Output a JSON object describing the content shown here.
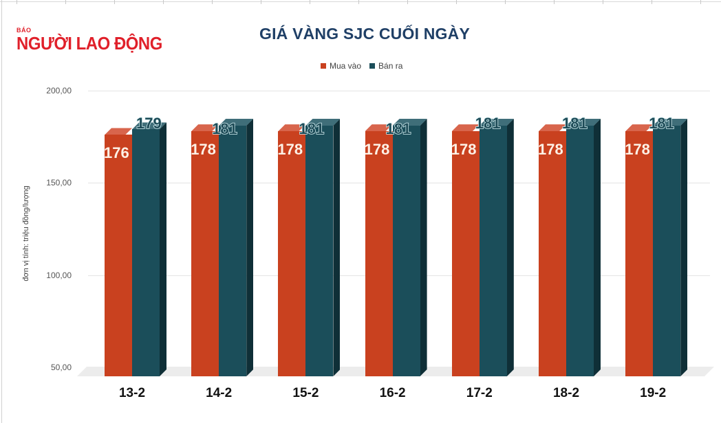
{
  "logo": {
    "small": "BÁO",
    "big": "NGƯỜI LAO ĐỘNG"
  },
  "colors": {
    "buy": "#c9411f",
    "buy_top": "#d8654c",
    "sell": "#1b4e5a",
    "sell_top": "#3f6e79",
    "sell_side": "#0f2f37",
    "title": "#1f3f66"
  },
  "chart_data": {
    "type": "bar",
    "title": "GIÁ VÀNG SJC CUỐI NGÀY",
    "xlabel": "",
    "ylabel": "đơn vị tính: triệu đồng/lượng",
    "ylim": [
      50,
      200
    ],
    "yticks": [
      "200,00",
      "150,00",
      "100,00",
      "50,00"
    ],
    "grid": true,
    "legend_position": "top",
    "categories": [
      "13-2",
      "14-2",
      "15-2",
      "16-2",
      "17-2",
      "18-2",
      "19-2"
    ],
    "series": [
      {
        "name": "Mua vào",
        "values": [
          176,
          178,
          178,
          178,
          178,
          178,
          178
        ]
      },
      {
        "name": "Bán ra",
        "values": [
          179,
          181,
          181,
          181,
          181,
          181,
          181
        ]
      }
    ]
  }
}
